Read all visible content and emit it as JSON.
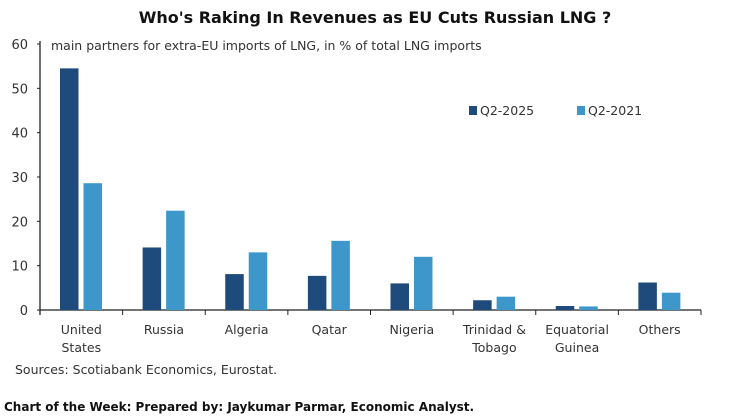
{
  "chart_data": {
    "type": "bar",
    "title": "Who's Raking In Revenues as EU Cuts Russian LNG ?",
    "subtitle": "main partners for extra-EU imports of LNG, in % of total LNG imports",
    "categories": [
      [
        "United",
        "States"
      ],
      [
        "Russia"
      ],
      [
        "Algeria"
      ],
      [
        "Qatar"
      ],
      [
        "Nigeria"
      ],
      [
        "Trinidad &",
        "Tobago"
      ],
      [
        "Equatorial",
        "Guinea"
      ],
      [
        "Others"
      ]
    ],
    "series": [
      {
        "name": "Q2-2025",
        "color": "#1f4a7c",
        "values": [
          54.5,
          14.1,
          8.1,
          7.7,
          6.0,
          2.2,
          0.9,
          6.2
        ]
      },
      {
        "name": "Q2-2021",
        "color": "#3d97cb",
        "values": [
          28.6,
          22.4,
          13.0,
          15.6,
          12.0,
          3.0,
          0.8,
          3.9
        ]
      }
    ],
    "ylim": [
      0,
      60
    ],
    "yticks": [
      0,
      10,
      20,
      30,
      40,
      50,
      60
    ],
    "grid": false,
    "legend": "top-right"
  },
  "source": "Sources: Scotiabank Economics, Eurostat.",
  "footer": "Chart of the Week: Prepared by: Jaykumar Parmar, Economic Analyst."
}
